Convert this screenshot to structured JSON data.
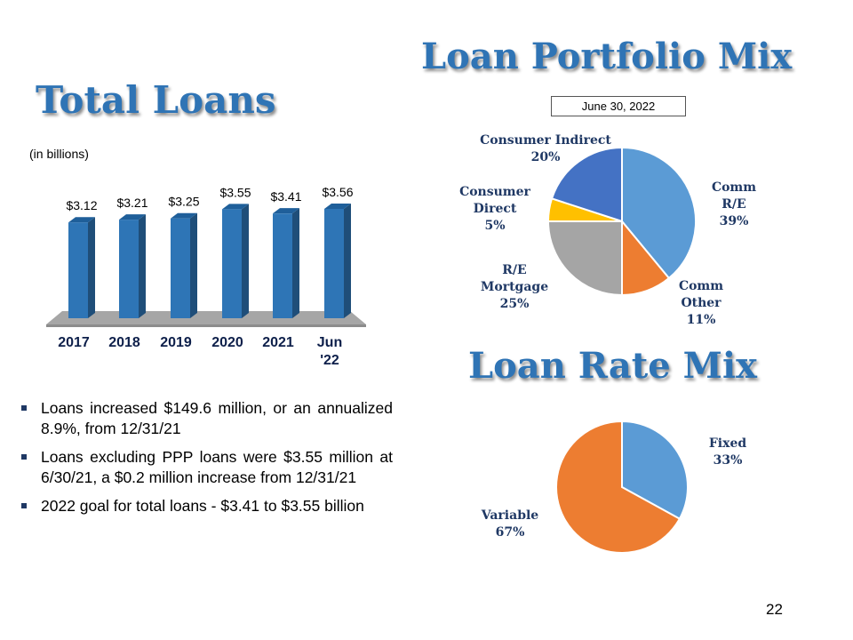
{
  "slide": {
    "page_number": "22",
    "units_note": "(in billions)",
    "bullets": [
      "Loans increased $149.6 million, or an annualized 8.9%, from 12/31/21",
      "Loans excluding PPP loans were $3.55 million at 6/30/21, a $0.2 million increase from 12/31/21",
      "2022 goal for total loans - $3.41 to $3.55 billion"
    ]
  },
  "chart_data": [
    {
      "type": "bar",
      "title": "Total Loans",
      "ylabel": "(in billions)",
      "categories": [
        [
          "2017"
        ],
        [
          "2018"
        ],
        [
          "2019"
        ],
        [
          "2020"
        ],
        [
          "2021"
        ],
        [
          "Jun",
          "'22"
        ]
      ],
      "values": [
        3.12,
        3.21,
        3.25,
        3.55,
        3.41,
        3.56
      ],
      "value_labels": [
        "$3.12",
        "$3.21",
        "$3.25",
        "$3.55",
        "$3.41",
        "$3.56"
      ],
      "ylim": [
        0,
        3.56
      ],
      "style": "3d-column",
      "grid": false,
      "legend": "none",
      "colors": {
        "bar": "#2e75b6",
        "bar_side": "#1f4e79",
        "floor": "#a6a6a6"
      }
    },
    {
      "type": "pie",
      "title": "Loan Portfolio Mix",
      "subtitle": "June 30, 2022",
      "slices": [
        {
          "label": [
            "Comm",
            "R/E",
            "39%"
          ],
          "value": 39,
          "color": "#5b9bd5"
        },
        {
          "label": [
            "Comm",
            "Other",
            "11%"
          ],
          "value": 11,
          "color": "#ed7d31"
        },
        {
          "label": [
            "R/E",
            "Mortgage",
            "25%"
          ],
          "value": 25,
          "color": "#a5a5a5"
        },
        {
          "label": [
            "Consumer",
            "Direct",
            "5%"
          ],
          "value": 5,
          "color": "#ffc000"
        },
        {
          "label": [
            "Consumer Indirect",
            "20%"
          ],
          "value": 20,
          "color": "#4472c4"
        }
      ],
      "legend": "none"
    },
    {
      "type": "pie",
      "title": "Loan Rate Mix",
      "slices": [
        {
          "label": [
            "Fixed",
            "33%"
          ],
          "value": 33,
          "color": "#5b9bd5"
        },
        {
          "label": [
            "Variable",
            "67%"
          ],
          "value": 67,
          "color": "#ed7d31"
        }
      ],
      "legend": "none"
    }
  ]
}
